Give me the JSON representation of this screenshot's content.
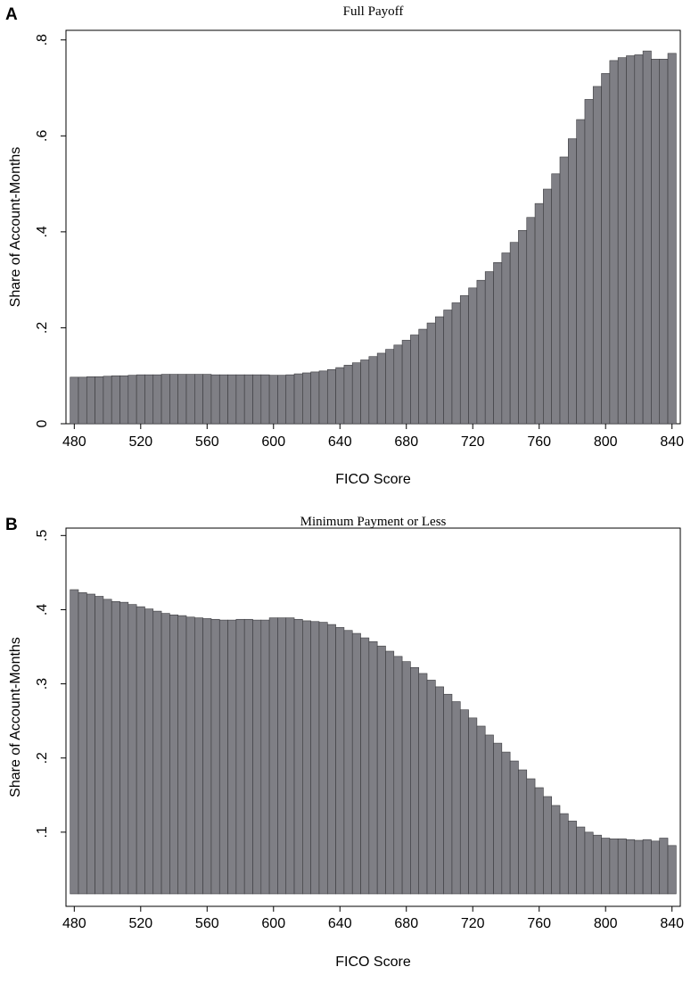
{
  "chart_data": [
    {
      "panel": "A",
      "type": "bar",
      "title": "Full Payoff",
      "xlabel": "FICO Score",
      "ylabel": "Share of Account-Months",
      "xlim": [
        475,
        845
      ],
      "ylim": [
        0,
        0.82
      ],
      "yticks": [
        0,
        0.2,
        0.4,
        0.6,
        0.8
      ],
      "ytick_labels": [
        "0",
        ".2",
        ".4",
        ".6",
        ".8"
      ],
      "xticks": [
        480,
        520,
        560,
        600,
        640,
        680,
        720,
        760,
        800,
        840
      ],
      "xtick_labels": [
        "480",
        "520",
        "560",
        "600",
        "640",
        "680",
        "720",
        "760",
        "800",
        "840"
      ],
      "bin_width": 5,
      "grid": false,
      "legend": "none",
      "x": [
        480,
        485,
        490,
        495,
        500,
        505,
        510,
        515,
        520,
        525,
        530,
        535,
        540,
        545,
        550,
        555,
        560,
        565,
        570,
        575,
        580,
        585,
        590,
        595,
        600,
        605,
        610,
        615,
        620,
        625,
        630,
        635,
        640,
        645,
        650,
        655,
        660,
        665,
        670,
        675,
        680,
        685,
        690,
        695,
        700,
        705,
        710,
        715,
        720,
        725,
        730,
        735,
        740,
        745,
        750,
        755,
        760,
        765,
        770,
        775,
        780,
        785,
        790,
        795,
        800,
        805,
        810,
        815,
        820,
        825,
        830,
        835,
        840
      ],
      "values": [
        0.097,
        0.097,
        0.098,
        0.098,
        0.099,
        0.1,
        0.1,
        0.101,
        0.102,
        0.102,
        0.102,
        0.103,
        0.103,
        0.103,
        0.103,
        0.103,
        0.103,
        0.102,
        0.102,
        0.102,
        0.102,
        0.102,
        0.102,
        0.102,
        0.101,
        0.101,
        0.102,
        0.104,
        0.106,
        0.108,
        0.11,
        0.113,
        0.117,
        0.122,
        0.127,
        0.133,
        0.14,
        0.147,
        0.155,
        0.164,
        0.174,
        0.185,
        0.197,
        0.21,
        0.223,
        0.237,
        0.252,
        0.267,
        0.283,
        0.299,
        0.317,
        0.336,
        0.356,
        0.378,
        0.403,
        0.43,
        0.459,
        0.489,
        0.521,
        0.556,
        0.594,
        0.634,
        0.676,
        0.703,
        0.73,
        0.757,
        0.763,
        0.767,
        0.769,
        0.777,
        0.76,
        0.76,
        0.772
      ]
    },
    {
      "panel": "B",
      "type": "bar",
      "title": "Minimum Payment or Less",
      "xlabel": "FICO Score",
      "ylabel": "Share of Account-Months",
      "xlim": [
        475,
        845
      ],
      "ylim": [
        0,
        0.51
      ],
      "yticks": [
        0.1,
        0.2,
        0.3,
        0.4,
        0.5
      ],
      "ytick_labels": [
        ".1",
        ".2",
        ".3",
        ".4",
        ".5"
      ],
      "xticks": [
        480,
        520,
        560,
        600,
        640,
        680,
        720,
        760,
        800,
        840
      ],
      "xtick_labels": [
        "480",
        "520",
        "560",
        "600",
        "640",
        "680",
        "720",
        "760",
        "800",
        "840"
      ],
      "bin_width": 5,
      "grid": false,
      "legend": "none",
      "x": [
        480,
        485,
        490,
        495,
        500,
        505,
        510,
        515,
        520,
        525,
        530,
        535,
        540,
        545,
        550,
        555,
        560,
        565,
        570,
        575,
        580,
        585,
        590,
        595,
        600,
        605,
        610,
        615,
        620,
        625,
        630,
        635,
        640,
        645,
        650,
        655,
        660,
        665,
        670,
        675,
        680,
        685,
        690,
        695,
        700,
        705,
        710,
        715,
        720,
        725,
        730,
        735,
        740,
        745,
        750,
        755,
        760,
        765,
        770,
        775,
        780,
        785,
        790,
        795,
        800,
        805,
        810,
        815,
        820,
        825,
        830,
        835,
        840
      ],
      "values": [
        0.427,
        0.423,
        0.421,
        0.418,
        0.414,
        0.411,
        0.41,
        0.407,
        0.404,
        0.401,
        0.398,
        0.395,
        0.393,
        0.392,
        0.39,
        0.389,
        0.388,
        0.387,
        0.386,
        0.386,
        0.387,
        0.387,
        0.386,
        0.386,
        0.389,
        0.389,
        0.389,
        0.387,
        0.385,
        0.384,
        0.383,
        0.38,
        0.376,
        0.372,
        0.368,
        0.362,
        0.357,
        0.351,
        0.344,
        0.337,
        0.33,
        0.322,
        0.314,
        0.305,
        0.296,
        0.286,
        0.276,
        0.265,
        0.254,
        0.243,
        0.231,
        0.22,
        0.208,
        0.196,
        0.184,
        0.172,
        0.16,
        0.148,
        0.136,
        0.125,
        0.115,
        0.107,
        0.1,
        0.096,
        0.092,
        0.091,
        0.091,
        0.09,
        0.089,
        0.09,
        0.088,
        0.092,
        0.082
      ]
    }
  ]
}
